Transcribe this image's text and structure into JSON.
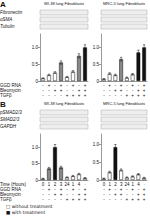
{
  "chart_data": [
    {
      "type": "bar",
      "title": "WI-38 lung Fibroblasts",
      "categories": [
        "-\n-\n-",
        "+\n-\n-",
        "-\n+\n-",
        "+\n+\n-",
        "-\n-\n+",
        "+\n-\n+",
        "-\n+\n+",
        "+\n+\n+"
      ],
      "values": [
        0.08,
        0.18,
        0.25,
        0.55,
        0.12,
        0.28,
        0.75,
        1.0
      ],
      "errors": [
        0.0156,
        0.0226,
        0.0275,
        0.0485,
        0.0184,
        0.0296,
        0.0625,
        0.08
      ],
      "colors": [
        "#ffffff",
        "#ffffff",
        "#ffffff",
        "#888888",
        "#ffffff",
        "#ffffff",
        "#888888",
        "#111111"
      ],
      "ylim": [
        0,
        1.4
      ],
      "yticks": [
        0,
        0.5,
        {
          "value": 1,
          "label": "1.0"
        }
      ],
      "grid": false,
      "annotations": [
        "A",
        "Fibronectin",
        "αSMA",
        "Tubulin",
        "GGD RNA",
        "Bleomycin",
        "TGFβ"
      ]
    },
    {
      "type": "bar",
      "title": "MRC-5 lung Fibroblasts",
      "categories": [
        "-\n-\n-",
        "+\n-\n-",
        "-\n+\n-",
        "+\n+\n-",
        "-\n-\n+",
        "+\n-\n+",
        "-\n+\n+",
        "+\n+\n+"
      ],
      "values": [
        0.06,
        0.22,
        0.18,
        0.65,
        0.1,
        0.2,
        0.85,
        1.0
      ],
      "errors": [
        0.0142,
        0.0254,
        0.0226,
        0.0555,
        0.017,
        0.024,
        0.0695,
        0.08
      ],
      "colors": [
        "#ffffff",
        "#ffffff",
        "#ffffff",
        "#888888",
        "#ffffff",
        "#ffffff",
        "#111111",
        "#111111"
      ],
      "ylim": [
        0,
        1.4
      ],
      "yticks": [
        0,
        0.5,
        {
          "value": 1,
          "label": "1.0"
        }
      ],
      "grid": false
    },
    {
      "type": "bar",
      "title": "WI-38 lung Fibroblasts",
      "categories": [
        "0\n-\n-\n-",
        "1\n+\n-\n-",
        "2\n-\n+\n-",
        "3\n+\n+\n-",
        "24\n-\n-\n+",
        "1\n+\n-\n+",
        "4\n-\n+\n+",
        "·\n+\n+\n+"
      ],
      "values": [
        0.04,
        0.35,
        1.0,
        0.38,
        0.08,
        0.12,
        0.18,
        0.06
      ],
      "errors": [
        0.0128,
        0.0345,
        0.08,
        0.0366,
        0.0156,
        0.0184,
        0.0226,
        0.0142
      ],
      "colors": [
        "#ffffff",
        "#888888",
        "#111111",
        "#888888",
        "#ffffff",
        "#ffffff",
        "#ffffff",
        "#ffffff"
      ],
      "ylim": [
        0,
        1.4
      ],
      "yticks": [
        0,
        0.5,
        {
          "value": 1,
          "label": "1.0"
        }
      ],
      "grid": false,
      "annotations": [
        "B",
        "pSMAD2/3",
        "SMAD2/3",
        "GAPDH",
        "Time (Hours)",
        "GGD RNA",
        "Bleomycin",
        "TGFβ"
      ]
    },
    {
      "type": "bar",
      "title": "MRC-5 lung Fibroblasts",
      "categories": [
        "0\n-\n-\n-",
        "1\n+\n-\n-",
        "2\n-\n+\n-",
        "3\n+\n+\n-",
        "24\n-\n-\n+",
        "1\n+\n-\n+",
        "4\n-\n+\n+",
        "·\n+\n+\n+"
      ],
      "values": [
        0.04,
        0.22,
        0.92,
        0.28,
        0.07,
        0.1,
        0.16,
        0.06
      ],
      "errors": [
        0.0128,
        0.0254,
        0.0744,
        0.0296,
        0.0149,
        0.017,
        0.0212,
        0.0142
      ],
      "colors": [
        "#ffffff",
        "#ffffff",
        "#111111",
        "#ffffff",
        "#ffffff",
        "#ffffff",
        "#ffffff",
        "#ffffff"
      ],
      "ylim": [
        0,
        1.288
      ],
      "yticks": [
        0,
        0.5,
        {
          "value": 1,
          "label": "1.0"
        }
      ],
      "grid": false,
      "annotations": [
        "□ without treatment",
        "■ with treatment"
      ]
    }
  ]
}
